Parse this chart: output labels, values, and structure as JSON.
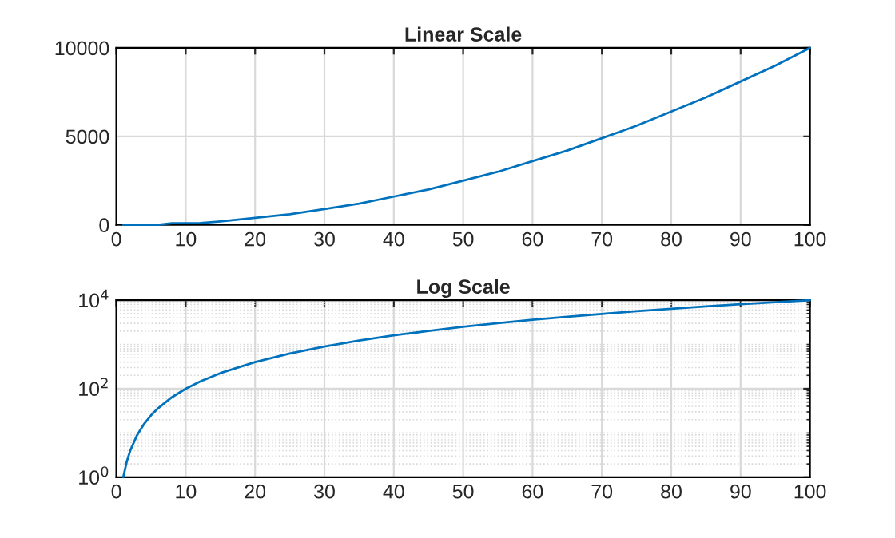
{
  "chart_data": [
    {
      "type": "line",
      "title": "Linear Scale",
      "x": [
        1,
        2,
        3,
        4,
        5,
        6,
        8,
        10,
        12,
        15,
        20,
        25,
        30,
        35,
        40,
        45,
        50,
        55,
        60,
        65,
        70,
        75,
        80,
        85,
        90,
        95,
        100
      ],
      "series": [
        {
          "color": "#0072bd",
          "values": [
            0,
            0,
            0,
            0,
            0,
            0,
            100,
            100,
            100,
            200,
            400,
            600,
            900,
            1200,
            1600,
            2000,
            2500,
            3000,
            3600,
            4200,
            4900,
            5600,
            6400,
            7200,
            8100,
            9000,
            10000
          ]
        }
      ],
      "xlim": [
        0,
        100
      ],
      "xticks": [
        0,
        10,
        20,
        30,
        40,
        50,
        60,
        70,
        80,
        90,
        100
      ],
      "ylim": [
        0,
        10000
      ],
      "yticks": [
        0,
        5000,
        10000
      ],
      "grid": true
    },
    {
      "type": "line",
      "title": "Log Scale",
      "x": [
        1,
        1.5,
        2,
        3,
        4,
        5,
        6,
        8,
        10,
        12,
        15,
        20,
        25,
        30,
        35,
        40,
        45,
        50,
        55,
        60,
        65,
        70,
        75,
        80,
        85,
        90,
        95,
        100
      ],
      "series": [
        {
          "color": "#0072bd",
          "values": [
            1,
            2.25,
            4,
            9,
            16,
            25,
            36,
            64,
            100,
            144,
            225,
            400,
            625,
            900,
            1225,
            1600,
            2025,
            2500,
            3025,
            3600,
            4225,
            4900,
            5625,
            6400,
            7225,
            8100,
            9025,
            10000
          ]
        }
      ],
      "xlim": [
        0,
        100
      ],
      "xticks": [
        0,
        10,
        20,
        30,
        40,
        50,
        60,
        70,
        80,
        90,
        100
      ],
      "ylim": [
        1,
        10000
      ],
      "yticks": [
        {
          "value": 1,
          "label": "10$^{0}$"
        },
        {
          "value": 100,
          "label": "10$^{2}$"
        },
        {
          "value": 10000,
          "label": "10$^{4}$"
        }
      ],
      "log": "y",
      "grid": true
    }
  ]
}
